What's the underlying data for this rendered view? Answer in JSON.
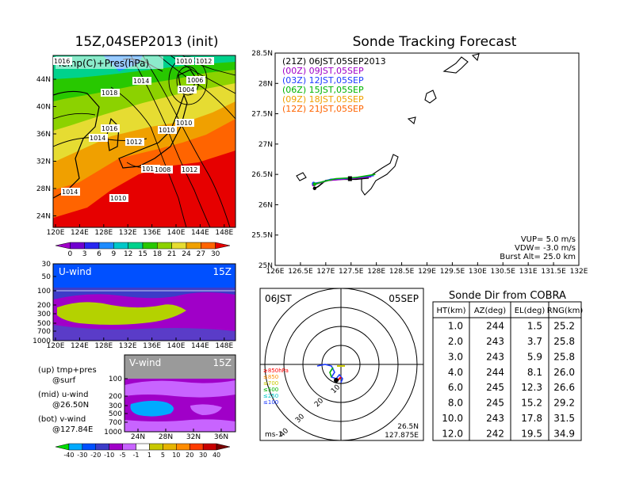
{
  "left_title": "15Z,04SEP2013 (init)",
  "map_panel": {
    "label": "Temp(C)+Pres(hPa)",
    "lat_ticks": [
      "44N",
      "40N",
      "36N",
      "32N",
      "28N",
      "24N"
    ],
    "lon_ticks": [
      "120E",
      "124E",
      "128E",
      "132E",
      "136E",
      "140E",
      "144E",
      "148E"
    ],
    "pressure_labels": [
      "1016",
      "1010",
      "1012",
      "1014",
      "1018",
      "1006",
      "1004",
      "1010",
      "1010",
      "1016",
      "1014",
      "1012",
      "1010",
      "1008",
      "1012",
      "1014",
      "1010"
    ],
    "colorbar_ticks": [
      "0",
      "3",
      "6",
      "9",
      "12",
      "15",
      "18",
      "21",
      "24",
      "27",
      "30"
    ],
    "colorbar_colors": [
      "#a000c8",
      "#7000d0",
      "#2828f0",
      "#1e8cff",
      "#00c8c8",
      "#00d28c",
      "#28c800",
      "#8cd200",
      "#e6dc32",
      "#f0a000",
      "#ff6400",
      "#e60000"
    ]
  },
  "uwind_panel": {
    "label": "U-wind",
    "time": "15Z",
    "p_ticks": [
      "30",
      "50",
      "100",
      "200",
      "300",
      "500",
      "700",
      "1000"
    ],
    "lon_ticks": [
      "120E",
      "124E",
      "128E",
      "132E",
      "136E",
      "140E",
      "144E",
      "148E"
    ]
  },
  "vwind_panel": {
    "label": "V-wind",
    "time": "15Z",
    "p_ticks": [
      "100",
      "200",
      "300",
      "500",
      "700",
      "1000"
    ],
    "lat_ticks": [
      "24N",
      "28N",
      "32N",
      "36N"
    ]
  },
  "notes": [
    {
      "line1": "(up) tmp+pres",
      "line2": "@surf"
    },
    {
      "line1": "(mid) u-wind",
      "line2": "@26.50N"
    },
    {
      "line1": "(bot) v-wind",
      "line2": "@127.84E"
    }
  ],
  "wind_colorbar": {
    "ticks": [
      "-40",
      "-30",
      "-20",
      "-10",
      "-5",
      "-1",
      "1",
      "5",
      "10",
      "20",
      "30",
      "40"
    ],
    "colors": [
      "#00dc00",
      "#00aaff",
      "#0050ff",
      "#3c3cc8",
      "#a000c8",
      "#c864ff",
      "#ffffff",
      "#c8c800",
      "#e6b400",
      "#ff8c00",
      "#ff3c00",
      "#c80000",
      "#780000"
    ]
  },
  "right_title": "Sonde Tracking Forecast",
  "track_panel": {
    "lat_ticks": [
      "28.5N",
      "28N",
      "27.5N",
      "27N",
      "26.5N",
      "26N",
      "25.5N",
      "25N"
    ],
    "lon_ticks": [
      "126E",
      "126.5E",
      "127E",
      "127.5E",
      "128E",
      "128.5E",
      "129E",
      "129.5E",
      "130E",
      "130.5E",
      "131E",
      "131.5E",
      "132E"
    ],
    "legend": [
      {
        "text": "(21Z)  06JST,05SEP2013",
        "color": "#000000"
      },
      {
        "text": "(00Z)  09JST,05SEP",
        "color": "#a000c8"
      },
      {
        "text": "(03Z)  12JST,05SEP",
        "color": "#1e3cff"
      },
      {
        "text": "(06Z)  15JST,05SEP",
        "color": "#00b400"
      },
      {
        "text": "(09Z)  18JST,05SEP",
        "color": "#f0a000"
      },
      {
        "text": "(12Z)  21JST,05SEP",
        "color": "#ff6400"
      }
    ],
    "params": [
      "VUP= 5.0 m/s",
      "VDW= -3.0 m/s",
      "Burst Alt= 25.0 km"
    ]
  },
  "polar_panel": {
    "time_label": "06JST",
    "date_label": "05SEP",
    "level_legend": [
      {
        "text": "≥850hPa",
        "color": "#ff0000"
      },
      {
        "text": "≤850",
        "color": "#ff8c00"
      },
      {
        "text": "≤700",
        "color": "#c8c800"
      },
      {
        "text": "≤500",
        "color": "#00b400"
      },
      {
        "text": "≤250",
        "color": "#00c8c8"
      },
      {
        "text": "≤100",
        "color": "#1e3cff"
      }
    ],
    "ring_labels": [
      "10",
      "20",
      "30",
      "40"
    ],
    "units": "ms-1",
    "loc_lat": "26.5N",
    "loc_lon": "127.875E"
  },
  "table": {
    "title": "Sonde Dir from COBRA",
    "headers": [
      "HT(km)",
      "AZ(deg)",
      "EL(deg)",
      "RNG(km)"
    ],
    "rows": [
      [
        "1.0",
        "244",
        "1.5",
        "25.2"
      ],
      [
        "2.0",
        "243",
        "3.7",
        "25.8"
      ],
      [
        "3.0",
        "243",
        "5.9",
        "25.8"
      ],
      [
        "4.0",
        "244",
        "8.1",
        "26.0"
      ],
      [
        "6.0",
        "245",
        "12.3",
        "26.6"
      ],
      [
        "8.0",
        "245",
        "15.2",
        "29.2"
      ],
      [
        "10.0",
        "243",
        "17.8",
        "31.5"
      ],
      [
        "12.0",
        "242",
        "19.5",
        "34.9"
      ]
    ]
  },
  "chart_data": [
    {
      "type": "heatmap",
      "title": "15Z,04SEP2013 (init)",
      "subtitle": "Temp(C)+Pres(hPa)",
      "xlim": [
        120,
        150
      ],
      "ylim": [
        22,
        47
      ],
      "colorbar": [
        0,
        3,
        6,
        9,
        12,
        15,
        18,
        21,
        24,
        27,
        30
      ],
      "annotations": [
        "1016",
        "1010",
        "1012",
        "1014",
        "1018",
        "1006",
        "1004",
        "1010",
        "1010",
        "1016",
        "1014",
        "1012",
        "1010",
        "1008",
        "1012",
        "1014",
        "1010"
      ]
    },
    {
      "type": "heatmap",
      "title": "U-wind 15Z",
      "xlim": [
        120,
        150
      ],
      "yaxis": "pressure (hPa), log, 1000 to 30"
    },
    {
      "type": "heatmap",
      "title": "V-wind 15Z",
      "xlim": [
        22,
        38
      ],
      "yaxis": "pressure (hPa), log, 1000 to 100",
      "colorbar": [
        -40,
        -30,
        -20,
        -10,
        -5,
        -1,
        1,
        5,
        10,
        20,
        30,
        40
      ]
    },
    {
      "type": "line",
      "title": "Sonde Tracking Forecast",
      "xlim": [
        126,
        132
      ],
      "ylim": [
        25,
        28.5
      ],
      "series": [
        {
          "name": "(21Z) 06JST,05SEP2013",
          "x": [
            126.78,
            126.85,
            127.0,
            127.3,
            127.6,
            127.85
          ],
          "y": [
            26.27,
            26.3,
            26.4,
            26.42,
            26.42,
            26.44
          ]
        },
        {
          "name": "(00Z) 09JST,05SEP",
          "x": [
            126.76,
            126.85,
            127.05,
            127.5,
            127.9
          ],
          "y": [
            26.33,
            26.35,
            26.4,
            26.43,
            26.46
          ]
        },
        {
          "name": "(03Z) 12JST,05SEP",
          "x": [
            126.76,
            126.9,
            127.1,
            127.5,
            127.95
          ],
          "y": [
            26.35,
            26.37,
            26.42,
            26.44,
            26.48
          ]
        },
        {
          "name": "(06Z) 15JST,05SEP",
          "x": [
            126.78,
            126.95,
            127.2,
            127.6,
            127.98
          ],
          "y": [
            26.34,
            26.38,
            26.43,
            26.45,
            26.5
          ]
        }
      ]
    },
    {
      "type": "scatter",
      "title": "06JST 05SEP",
      "rings": [
        10,
        20,
        30,
        40
      ],
      "units": "ms-1"
    },
    {
      "type": "table",
      "title": "Sonde Dir from COBRA",
      "columns": [
        "HT(km)",
        "AZ(deg)",
        "EL(deg)",
        "RNG(km)"
      ],
      "rows": [
        [
          1.0,
          244,
          1.5,
          25.2
        ],
        [
          2.0,
          243,
          3.7,
          25.8
        ],
        [
          3.0,
          243,
          5.9,
          25.8
        ],
        [
          4.0,
          244,
          8.1,
          26.0
        ],
        [
          6.0,
          245,
          12.3,
          26.6
        ],
        [
          8.0,
          245,
          15.2,
          29.2
        ],
        [
          10.0,
          243,
          17.8,
          31.5
        ],
        [
          12.0,
          242,
          19.5,
          34.9
        ]
      ]
    }
  ]
}
